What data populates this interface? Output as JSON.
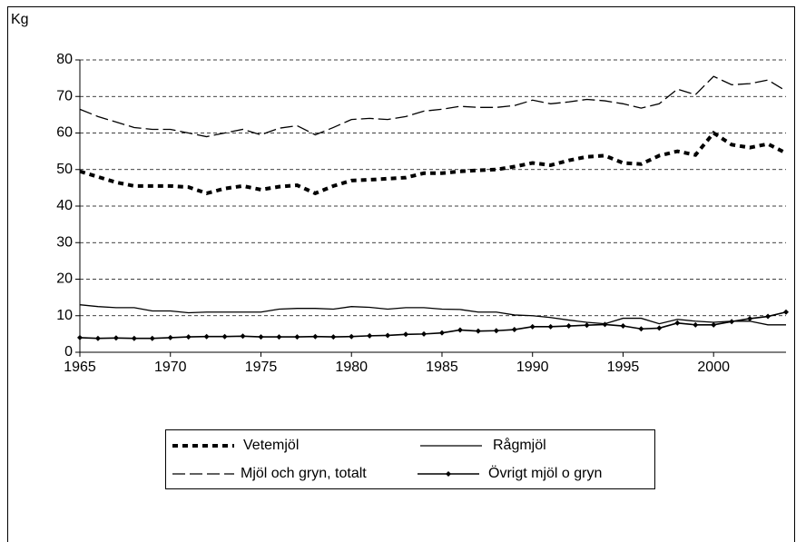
{
  "chart_data": {
    "type": "line",
    "ylabel": "Kg",
    "x": [
      1965,
      1966,
      1967,
      1968,
      1969,
      1970,
      1971,
      1972,
      1973,
      1974,
      1975,
      1976,
      1977,
      1978,
      1979,
      1980,
      1981,
      1982,
      1983,
      1984,
      1985,
      1986,
      1987,
      1988,
      1989,
      1990,
      1991,
      1992,
      1993,
      1994,
      1995,
      1996,
      1997,
      1998,
      1999,
      2000,
      2001,
      2002,
      2003,
      2004
    ],
    "xlim": [
      1965,
      2004
    ],
    "xticks": [
      1965,
      1970,
      1975,
      1980,
      1985,
      1990,
      1995,
      2000
    ],
    "ylim": [
      0,
      80
    ],
    "yticks": [
      0,
      10,
      20,
      30,
      40,
      50,
      60,
      70,
      80
    ],
    "grid": true,
    "series": [
      {
        "name": "Vetemjöl",
        "color": "#000000",
        "line_style": "dotted",
        "values": [
          49.5,
          48,
          46.5,
          45.5,
          45.5,
          45.5,
          45.2,
          43.5,
          44.8,
          45.5,
          44.5,
          45.3,
          45.7,
          43.5,
          45.5,
          47,
          47.2,
          47.5,
          47.8,
          49,
          49,
          49.5,
          49.8,
          50,
          50.8,
          51.8,
          51.2,
          52.5,
          53.5,
          53.8,
          51.8,
          51.5,
          53.8,
          55,
          54,
          60,
          56.8,
          56,
          57,
          54.5
        ]
      },
      {
        "name": "Rågmjöl",
        "color": "#000000",
        "line_style": "solid",
        "values": [
          13,
          12.5,
          12.2,
          12.2,
          11.3,
          11.3,
          10.8,
          11,
          11,
          11,
          11,
          11.8,
          12,
          12,
          11.8,
          12.5,
          12.3,
          11.8,
          12.2,
          12.2,
          11.8,
          11.7,
          11,
          11,
          10.2,
          10,
          9.5,
          8.8,
          8.2,
          7.8,
          9.3,
          9.3,
          7.8,
          9,
          8.5,
          8.2,
          8.5,
          8.5,
          7.5,
          7.5
        ]
      },
      {
        "name": "Mjöl och gryn, totalt",
        "color": "#000000",
        "line_style": "dashed",
        "values": [
          66.5,
          64.5,
          63,
          61.5,
          61,
          61,
          60,
          59,
          60,
          61,
          59.5,
          61.3,
          62,
          59.5,
          61.5,
          63.7,
          64,
          63.7,
          64.5,
          66,
          66.5,
          67.3,
          67,
          67,
          67.5,
          69,
          68,
          68.5,
          69.2,
          68.8,
          68,
          66.8,
          68,
          72,
          70.5,
          75.5,
          73.2,
          73.5,
          74.5,
          71.5
        ]
      },
      {
        "name": "Övrigt mjöl o gryn",
        "color": "#000000",
        "line_style": "diamond",
        "values": [
          4,
          3.8,
          3.9,
          3.8,
          3.8,
          4,
          4.2,
          4.3,
          4.3,
          4.4,
          4.2,
          4.2,
          4.2,
          4.3,
          4.2,
          4.3,
          4.5,
          4.6,
          4.9,
          5,
          5.3,
          6.1,
          5.8,
          5.9,
          6.2,
          7,
          7,
          7.2,
          7.4,
          7.6,
          7.2,
          6.4,
          6.6,
          8,
          7.5,
          7.5,
          8.4,
          9.2,
          9.8,
          11
        ]
      }
    ]
  }
}
